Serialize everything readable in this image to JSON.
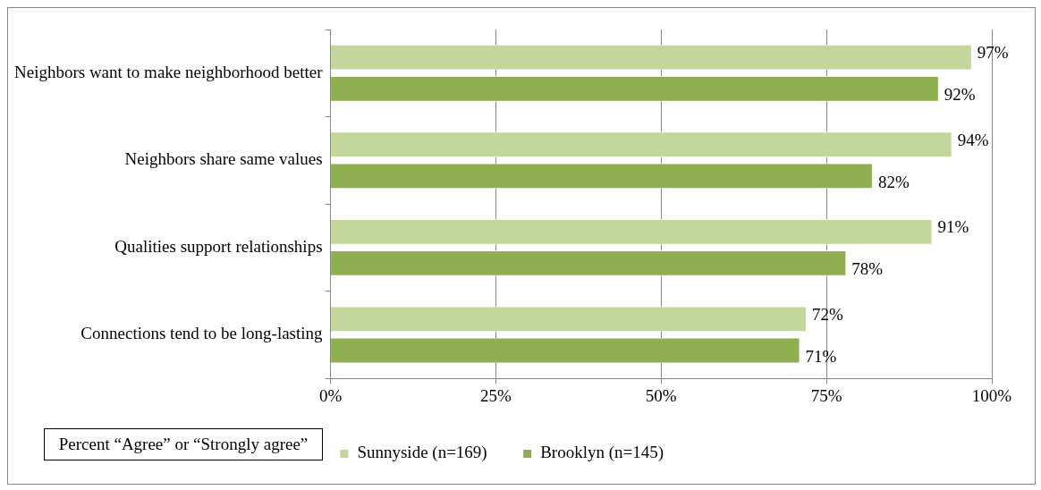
{
  "chart_data": {
    "type": "bar",
    "orientation": "horizontal",
    "categories": [
      "Neighbors want to make neighborhood better",
      "Neighbors share same values",
      "Qualities support relationships",
      "Connections tend to be long-lasting"
    ],
    "series": [
      {
        "name": "Sunnyside (n=169)",
        "color": "#c3d69b",
        "values": [
          97,
          94,
          91,
          72
        ],
        "value_labels": [
          "97%",
          "94%",
          "91%",
          "72%"
        ]
      },
      {
        "name": "Brooklyn (n=145)",
        "color": "#8fae4f",
        "values": [
          92,
          82,
          78,
          71
        ],
        "value_labels": [
          "92%",
          "82%",
          "78%",
          "71%"
        ]
      }
    ],
    "xlim": [
      0,
      100
    ],
    "xticks": [
      {
        "value": 0,
        "label": "0%"
      },
      {
        "value": 25,
        "label": "25%"
      },
      {
        "value": 50,
        "label": "50%"
      },
      {
        "value": 75,
        "label": "75%"
      },
      {
        "value": 100,
        "label": "100%"
      }
    ],
    "grid": "x",
    "legend": "bottom",
    "annotations": [
      "Percent “Agree” or “Strongly agree”"
    ]
  }
}
